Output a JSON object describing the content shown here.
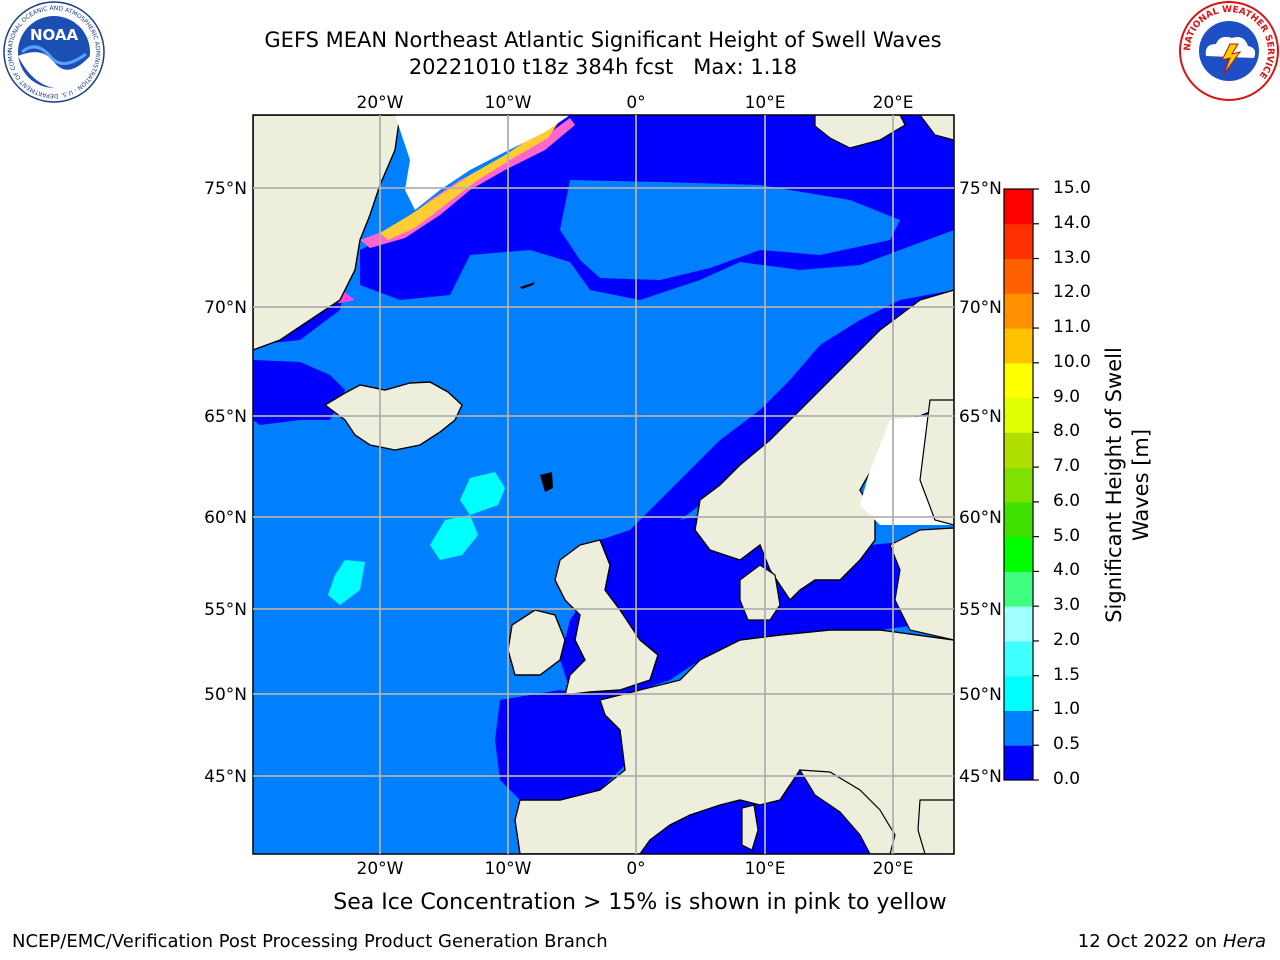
{
  "title_line1": "GEFS MEAN Northeast Atlantic Significant Height of Swell Waves",
  "title_line2": "20221010 t18z 384h fcst   Max: 1.18",
  "caption": "Sea Ice Concentration > 15% is shown in pink to yellow",
  "footer_left": "NCEP/EMC/Verification Post Processing Product Generation Branch",
  "footer_right_date": "12 Oct 2022 on ",
  "footer_right_host": "Hera",
  "logos": {
    "noaa_text": "NOAA",
    "noaa_ring": "NATIONAL OCEANIC AND ATMOSPHERIC ADMINISTRATION · U.S. DEPARTMENT OF COMMERCE",
    "nws_ring": "NATIONAL WEATHER SERVICE"
  },
  "map": {
    "lon_labels": [
      {
        "lon": -20,
        "label": "20°W"
      },
      {
        "lon": -10,
        "label": "10°W"
      },
      {
        "lon": 0,
        "label": "0°"
      },
      {
        "lon": 10,
        "label": "10°E"
      },
      {
        "lon": 20,
        "label": "20°E"
      }
    ],
    "lat_labels": [
      {
        "lat": 75,
        "label": "75°N"
      },
      {
        "lat": 70,
        "label": "70°N"
      },
      {
        "lat": 65,
        "label": "65°N"
      },
      {
        "lat": 60,
        "label": "60°N"
      },
      {
        "lat": 55,
        "label": "55°N"
      },
      {
        "lat": 50,
        "label": "50°N"
      },
      {
        "lat": 45,
        "label": "45°N"
      }
    ],
    "colors": {
      "land": "#eeeedd",
      "sea_0_05": "#0000ff",
      "sea_05_1": "#0080ff",
      "sea_1_15": "#00ffff",
      "grid": "#b0b0b0"
    }
  },
  "colorbar": {
    "title_line1": "Significant Height of Swell",
    "title_line2": "Waves [m]",
    "ticks": [
      "0.0",
      "0.5",
      "1.0",
      "1.5",
      "2.0",
      "3.0",
      "4.0",
      "5.0",
      "6.0",
      "7.0",
      "8.0",
      "9.0",
      "10.0",
      "11.0",
      "12.0",
      "13.0",
      "14.0",
      "15.0"
    ],
    "colors": [
      "#0000ff",
      "#0080ff",
      "#00ffff",
      "#40ffff",
      "#a0ffff",
      "#40ff80",
      "#00ff00",
      "#40e000",
      "#80e000",
      "#b0e000",
      "#e0ff00",
      "#ffff00",
      "#ffc000",
      "#ff9000",
      "#ff6000",
      "#ff3000",
      "#ff0000"
    ]
  }
}
